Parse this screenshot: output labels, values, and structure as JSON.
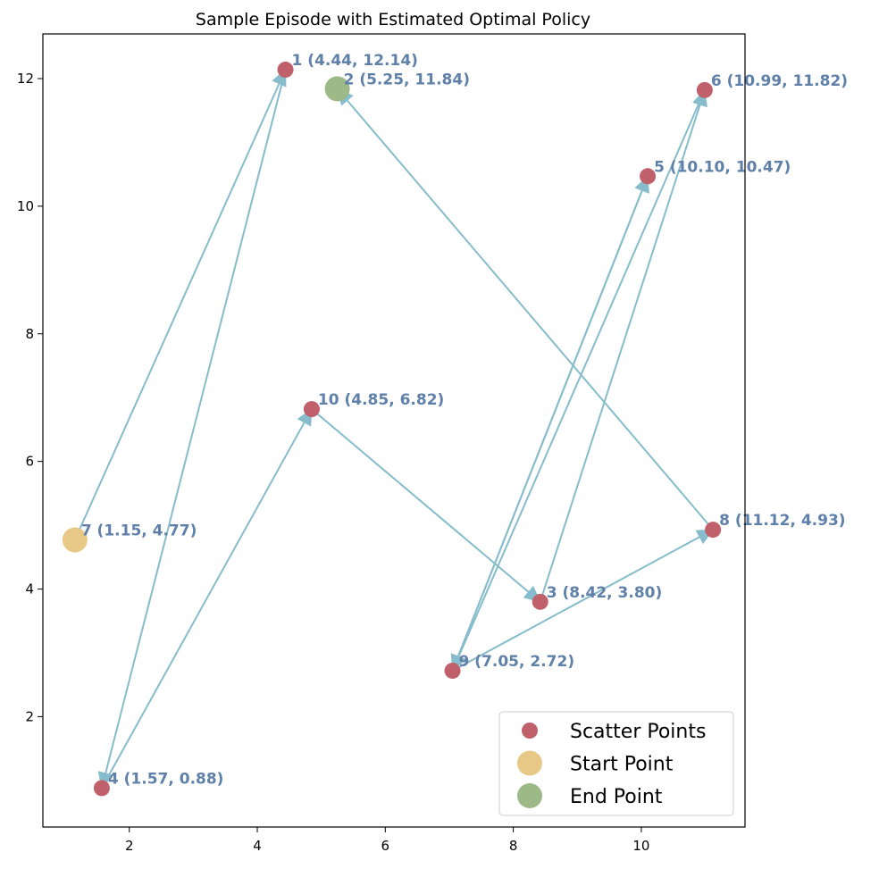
{
  "chart_data": {
    "type": "scatter",
    "title": "Sample Episode with Estimated Optimal Policy",
    "xlabel": "",
    "ylabel": "",
    "xlim": [
      0.65,
      11.62
    ],
    "ylim": [
      0.27,
      12.7
    ],
    "x_ticks": [
      2,
      4,
      6,
      8,
      10
    ],
    "y_ticks": [
      2,
      4,
      6,
      8,
      10,
      12
    ],
    "grid": false,
    "legend_position": "lower-right",
    "points": [
      {
        "id": 1,
        "x": 4.44,
        "y": 12.14,
        "label": "1 (4.44, 12.14)"
      },
      {
        "id": 2,
        "x": 5.25,
        "y": 11.84,
        "label": "2 (5.25, 11.84)"
      },
      {
        "id": 3,
        "x": 8.42,
        "y": 3.8,
        "label": "3 (8.42, 3.80)"
      },
      {
        "id": 4,
        "x": 1.57,
        "y": 0.88,
        "label": "4 (1.57, 0.88)"
      },
      {
        "id": 5,
        "x": 10.1,
        "y": 10.47,
        "label": "5 (10.10, 10.47)"
      },
      {
        "id": 6,
        "x": 10.99,
        "y": 11.82,
        "label": "6 (10.99, 11.82)"
      },
      {
        "id": 7,
        "x": 1.15,
        "y": 4.77,
        "label": "7 (1.15, 4.77)"
      },
      {
        "id": 8,
        "x": 11.12,
        "y": 4.93,
        "label": "8 (11.12, 4.93)"
      },
      {
        "id": 9,
        "x": 7.05,
        "y": 2.72,
        "label": "9 (7.05, 2.72)"
      },
      {
        "id": 10,
        "x": 4.85,
        "y": 6.82,
        "label": "10 (4.85, 6.82)"
      }
    ],
    "start_point": 7,
    "end_point": 2,
    "path": [
      7,
      1,
      4,
      10,
      3,
      6,
      9,
      8,
      2
    ],
    "extra_path": [
      [
        5,
        9
      ],
      [
        9,
        5
      ]
    ],
    "legend": [
      "Scatter Points",
      "Start Point",
      "End Point"
    ],
    "colors": {
      "scatter": "#c0606a",
      "start": "#e8c887",
      "end": "#9db987",
      "arrow": "#86bccb",
      "label": "#5f80a8"
    }
  }
}
